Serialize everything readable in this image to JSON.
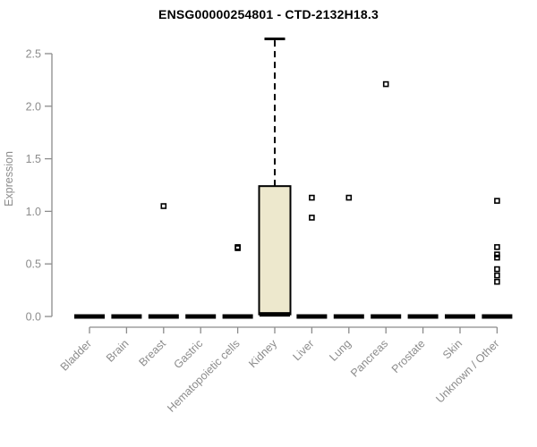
{
  "chart_data": {
    "type": "boxplot",
    "title": "ENSG00000254801 - CTD-2132H18.3",
    "ylabel": "Expression",
    "ylim": [
      0.0,
      2.5
    ],
    "yticks": [
      0.0,
      0.5,
      1.0,
      1.5,
      2.0,
      2.5
    ],
    "ytick_labels": [
      "0.0",
      "0.5",
      "1.0",
      "1.5",
      "2.0",
      "2.5"
    ],
    "grid": "off",
    "legend": "none",
    "categories": [
      "Bladder",
      "Brain",
      "Breast",
      "Gastric",
      "Hematopoietic cells",
      "Kidney",
      "Liver",
      "Lung",
      "Pancreas",
      "Prostate",
      "Skin",
      "Unknown / Other"
    ],
    "boxes": [
      {
        "category": "Bladder",
        "median": 0,
        "q1": 0,
        "q3": 0,
        "whisker_low": 0,
        "whisker_high": 0,
        "outliers": []
      },
      {
        "category": "Brain",
        "median": 0,
        "q1": 0,
        "q3": 0,
        "whisker_low": 0,
        "whisker_high": 0,
        "outliers": []
      },
      {
        "category": "Breast",
        "median": 0,
        "q1": 0,
        "q3": 0,
        "whisker_low": 0,
        "whisker_high": 0,
        "outliers": [
          1.05
        ]
      },
      {
        "category": "Gastric",
        "median": 0,
        "q1": 0,
        "q3": 0,
        "whisker_low": 0,
        "whisker_high": 0,
        "outliers": []
      },
      {
        "category": "Hematopoietic cells",
        "median": 0,
        "q1": 0,
        "q3": 0,
        "whisker_low": 0,
        "whisker_high": 0,
        "outliers": [
          0.66,
          0.65
        ]
      },
      {
        "category": "Kidney",
        "median": 0.02,
        "q1": 0.02,
        "q3": 1.24,
        "whisker_low": 0,
        "whisker_high": 2.64,
        "outliers": []
      },
      {
        "category": "Liver",
        "median": 0,
        "q1": 0,
        "q3": 0,
        "whisker_low": 0,
        "whisker_high": 0,
        "outliers": [
          1.13,
          0.94
        ]
      },
      {
        "category": "Lung",
        "median": 0,
        "q1": 0,
        "q3": 0,
        "whisker_low": 0,
        "whisker_high": 0,
        "outliers": [
          1.13
        ]
      },
      {
        "category": "Pancreas",
        "median": 0,
        "q1": 0,
        "q3": 0,
        "whisker_low": 0,
        "whisker_high": 0,
        "outliers": [
          2.21
        ]
      },
      {
        "category": "Prostate",
        "median": 0,
        "q1": 0,
        "q3": 0,
        "whisker_low": 0,
        "whisker_high": 0,
        "outliers": []
      },
      {
        "category": "Skin",
        "median": 0,
        "q1": 0,
        "q3": 0,
        "whisker_low": 0,
        "whisker_high": 0,
        "outliers": []
      },
      {
        "category": "Unknown / Other",
        "median": 0,
        "q1": 0,
        "q3": 0,
        "whisker_low": 0,
        "whisker_high": 0,
        "outliers": [
          1.1,
          0.66,
          0.59,
          0.56,
          0.45,
          0.39,
          0.33
        ]
      }
    ],
    "colors": {
      "title": "#000000",
      "axis": "#8C8C8C",
      "axis_text": "#8C8C8C",
      "box_fill": "#EDE8CD",
      "box_border": "#000000",
      "whisker": "#000000",
      "outlier": "#000000",
      "background": "#FFFFFF"
    }
  }
}
